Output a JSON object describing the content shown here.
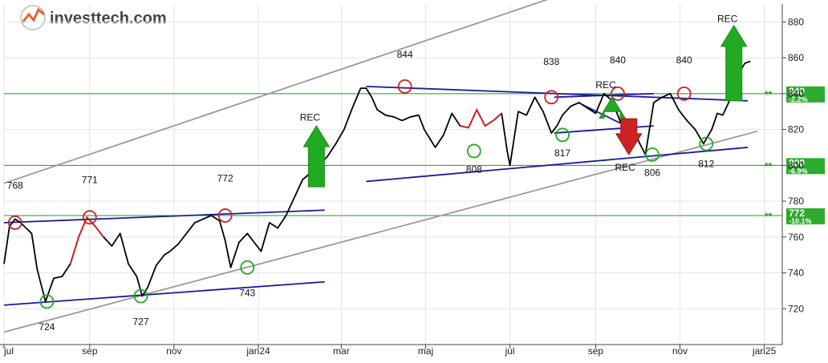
{
  "brand": {
    "name": "investtech.com",
    "color_primary": "#555555",
    "color_accent": "#e8632b"
  },
  "chart_data": {
    "type": "line",
    "title": "",
    "xlabel": "",
    "ylabel": "",
    "ylim": [
      700,
      890
    ],
    "y_ticks": [
      720,
      740,
      760,
      780,
      800,
      820,
      840,
      860,
      880
    ],
    "x_tick_labels": [
      "jul",
      "sep",
      "nov",
      "jan24",
      "mar",
      "maj",
      "jul",
      "sep",
      "nov",
      "jan25"
    ],
    "x_tick_days": [
      0,
      62,
      123,
      184,
      244,
      305,
      366,
      428,
      489,
      550
    ],
    "date_start": "2023-07-01",
    "series": [
      {
        "color": "#000000",
        "x": [
          0,
          4,
          8,
          12,
          16,
          20,
          24,
          30,
          36,
          42,
          48,
          54,
          60,
          66,
          72,
          78,
          84,
          90,
          96,
          100,
          104,
          110,
          116,
          120,
          126,
          132,
          138,
          144,
          150,
          156,
          160,
          164,
          170,
          176,
          180,
          186,
          192,
          198,
          204,
          210,
          216,
          222,
          228,
          234,
          240,
          246,
          252,
          258,
          262,
          266,
          270,
          276,
          282,
          288,
          294,
          300,
          304,
          308,
          312,
          318,
          324,
          330,
          336,
          342,
          348,
          354,
          360,
          364,
          366,
          372,
          378,
          384,
          390,
          396,
          400,
          404,
          410,
          416,
          422,
          428,
          434,
          440,
          446,
          452,
          456,
          460,
          464,
          470,
          476,
          482,
          488,
          494,
          500,
          506,
          512,
          516,
          520,
          526,
          532,
          536,
          540
        ],
        "y": [
          745,
          766,
          770,
          768,
          765,
          762,
          742,
          724,
          737,
          738,
          745,
          760,
          771,
          766,
          760,
          755,
          762,
          745,
          738,
          727,
          732,
          744,
          750,
          752,
          756,
          762,
          768,
          770,
          772,
          769,
          758,
          743,
          757,
          762,
          758,
          752,
          768,
          765,
          772,
          782,
          792,
          796,
          800,
          805,
          812,
          820,
          832,
          843,
          843,
          838,
          831,
          828,
          827,
          825,
          827,
          828,
          820,
          815,
          810,
          817,
          829,
          822,
          821,
          831,
          822,
          825,
          829,
          808,
          800,
          830,
          828,
          838,
          830,
          818,
          822,
          828,
          833,
          835,
          832,
          829,
          840,
          836,
          824,
          822,
          819,
          812,
          806,
          835,
          838,
          840,
          831,
          825,
          820,
          812,
          820,
          829,
          828,
          838,
          852,
          857,
          858
        ],
        "red_segments": [
          [
            10,
            14
          ],
          [
            61,
            66
          ],
          [
            251,
            264
          ],
          [
            531,
            538
          ]
        ]
      }
    ],
    "horizontal_levels": [
      {
        "value": 840,
        "label": "840",
        "change": "-2.2%",
        "marker": "**"
      },
      {
        "value": 800,
        "label": "800",
        "change": "-6.9%",
        "marker": "**"
      },
      {
        "value": 772,
        "label": "772",
        "change": "-10.1%",
        "marker": "**"
      }
    ],
    "trend_lines": [
      {
        "color": "#999999",
        "points": [
          [
            0,
            790
          ],
          [
            510,
            923
          ]
        ]
      },
      {
        "color": "#999999",
        "points": [
          [
            0,
            707
          ],
          [
            545,
            819
          ]
        ]
      },
      {
        "color": "#1a1aa0",
        "points": [
          [
            0,
            768
          ],
          [
            232,
            775
          ]
        ]
      },
      {
        "color": "#1a1aa0",
        "points": [
          [
            0,
            722
          ],
          [
            232,
            735
          ]
        ]
      },
      {
        "color": "#1a1aa0",
        "points": [
          [
            262,
            844
          ],
          [
            538,
            836
          ]
        ]
      },
      {
        "color": "#1a1aa0",
        "points": [
          [
            262,
            791
          ],
          [
            538,
            810
          ]
        ]
      },
      {
        "color": "#1a1aa0",
        "points": [
          [
            398,
            838
          ],
          [
            470,
            840
          ]
        ]
      },
      {
        "color": "#1a1aa0",
        "points": [
          [
            398,
            818
          ],
          [
            470,
            822
          ]
        ]
      },
      {
        "color": "#1a1aa0",
        "points": [
          [
            418,
            834
          ],
          [
            450,
            822
          ]
        ]
      }
    ],
    "circles": [
      {
        "x": 8,
        "y": 768,
        "type": "top"
      },
      {
        "x": 62,
        "y": 771,
        "type": "top"
      },
      {
        "x": 160,
        "y": 772,
        "type": "top"
      },
      {
        "x": 290,
        "y": 844,
        "type": "top"
      },
      {
        "x": 396,
        "y": 838,
        "type": "top"
      },
      {
        "x": 444,
        "y": 840,
        "type": "top"
      },
      {
        "x": 492,
        "y": 840,
        "type": "top"
      },
      {
        "x": 31,
        "y": 724,
        "type": "bottom"
      },
      {
        "x": 99,
        "y": 727,
        "type": "bottom"
      },
      {
        "x": 176,
        "y": 743,
        "type": "bottom"
      },
      {
        "x": 340,
        "y": 808,
        "type": "bottom"
      },
      {
        "x": 404,
        "y": 817,
        "type": "bottom"
      },
      {
        "x": 469,
        "y": 806,
        "type": "bottom"
      },
      {
        "x": 508,
        "y": 812,
        "type": "bottom"
      }
    ],
    "annotations": [
      {
        "text": "768",
        "x": 8,
        "y": 787
      },
      {
        "text": "771",
        "x": 62,
        "y": 790
      },
      {
        "text": "772",
        "x": 160,
        "y": 791
      },
      {
        "text": "724",
        "x": 31,
        "y": 708
      },
      {
        "text": "727",
        "x": 99,
        "y": 711
      },
      {
        "text": "743",
        "x": 176,
        "y": 727
      },
      {
        "text": "844",
        "x": 290,
        "y": 860
      },
      {
        "text": "838",
        "x": 396,
        "y": 856
      },
      {
        "text": "840",
        "x": 444,
        "y": 857
      },
      {
        "text": "840",
        "x": 492,
        "y": 857
      },
      {
        "text": "808",
        "x": 340,
        "y": 796
      },
      {
        "text": "817",
        "x": 404,
        "y": 805
      },
      {
        "text": "806",
        "x": 469,
        "y": 794
      },
      {
        "text": "812",
        "x": 508,
        "y": 799
      }
    ],
    "rec_signals": [
      {
        "text": "REC",
        "direction": "up",
        "x": 226,
        "text_x": 214,
        "text_y": 825,
        "base": 788,
        "top": 822
      },
      {
        "text": "REC",
        "direction": "up",
        "x": 440,
        "text_x": 428,
        "text_y": 843,
        "base": 830,
        "top": 838
      },
      {
        "text": "REC",
        "direction": "down",
        "x": 452,
        "text_x": 442,
        "text_y": 797,
        "base": 826,
        "top": 806
      },
      {
        "text": "REC",
        "direction": "up",
        "x": 528,
        "text_x": 516,
        "text_y": 880,
        "base": 836,
        "top": 878
      }
    ],
    "colors": {
      "line": "#000000",
      "rising_segment": "#d22020",
      "support_level": "#1aa01a",
      "trend_channel": "#999999",
      "trend_line": "#1a1aa0",
      "top_circle": "#cc2222",
      "bottom_circle": "#22aa22",
      "signal_up": "#22aa22",
      "signal_down": "#cc2222"
    }
  }
}
